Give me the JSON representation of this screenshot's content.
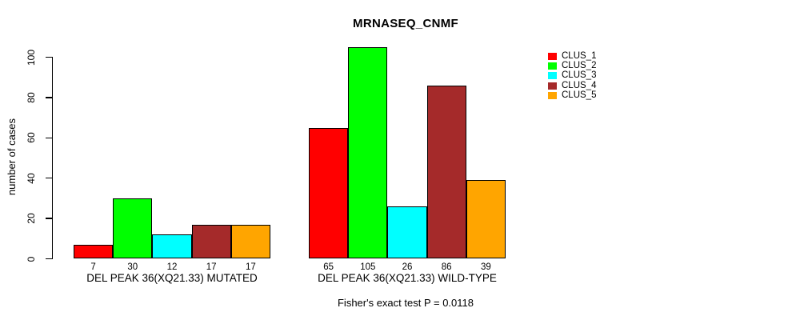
{
  "chart_data": {
    "type": "bar",
    "title": "MRNASEQ_CNMF",
    "ylabel": "number of cases",
    "xlabel": "",
    "ylim": [
      0,
      105
    ],
    "yticks": [
      0,
      20,
      40,
      60,
      80,
      100
    ],
    "grid": false,
    "legend_position": "right",
    "categories": [
      "DEL PEAK 36(XQ21.33) MUTATED",
      "DEL PEAK 36(XQ21.33) WILD-TYPE"
    ],
    "series": [
      {
        "name": "CLUS_1",
        "color": "#FF0000",
        "values": [
          7,
          65
        ]
      },
      {
        "name": "CLUS_2",
        "color": "#00FF00",
        "values": [
          30,
          105
        ]
      },
      {
        "name": "CLUS_3",
        "color": "#00FFFF",
        "values": [
          12,
          26
        ]
      },
      {
        "name": "CLUS_4",
        "color": "#A52A2A",
        "values": [
          17,
          86
        ]
      },
      {
        "name": "CLUS_5",
        "color": "#FFA500",
        "values": [
          17,
          39
        ]
      }
    ],
    "bar_value_labels": [
      [
        7,
        30,
        12,
        17,
        17
      ],
      [
        65,
        105,
        26,
        86,
        39
      ]
    ],
    "annotation": "Fisher's exact test P = 0.0118"
  }
}
